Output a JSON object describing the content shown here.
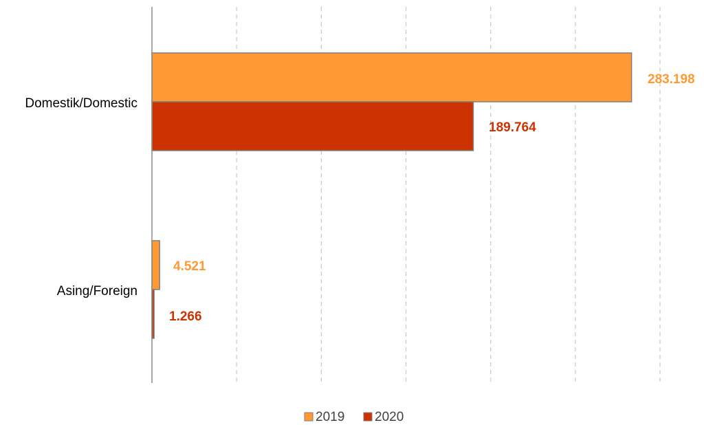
{
  "chart_data": {
    "type": "bar",
    "orientation": "horizontal",
    "categories": [
      "Domestik/Domestic",
      "Asing/Foreign"
    ],
    "series": [
      {
        "name": "2019",
        "color": "#FF9933",
        "values": [
          283198,
          4521
        ],
        "labels": [
          "283.198",
          "4.521"
        ]
      },
      {
        "name": "2020",
        "color": "#CC3300",
        "values": [
          189764,
          1266
        ],
        "labels": [
          "189.764",
          "1.266"
        ]
      }
    ],
    "xlim": [
      0,
      300000
    ],
    "grid": true,
    "grid_style": "dashed",
    "legend_position": "bottom",
    "title": "",
    "xlabel": "",
    "ylabel": ""
  }
}
